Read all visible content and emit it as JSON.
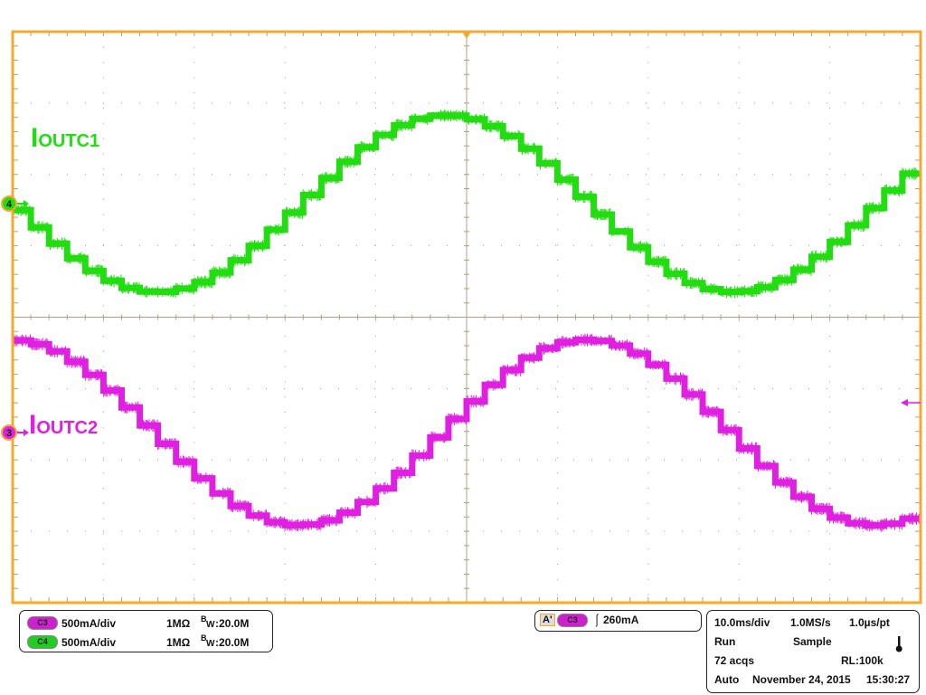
{
  "chart_data": {
    "type": "line",
    "xlabel": "",
    "ylabel": "",
    "x_unit": "ms",
    "xlim": [
      -50,
      50
    ],
    "x_divisions": 10,
    "y_divisions": 8,
    "grid": true,
    "x": [
      -50,
      -48,
      -46,
      -44,
      -42,
      -40,
      -38,
      -36,
      -34,
      -32,
      -30,
      -28,
      -26,
      -24,
      -22,
      -20,
      -18,
      -16,
      -14,
      -12,
      -10,
      -8,
      -6,
      -4,
      -2,
      0,
      2,
      4,
      6,
      8,
      10,
      12,
      14,
      16,
      18,
      20,
      22,
      24,
      26,
      28,
      30,
      32,
      34,
      36,
      38,
      40,
      42,
      44,
      46,
      48
    ],
    "series": [
      {
        "name": "IOUTC1",
        "label_main": "I",
        "label_sub": "OUTC1",
        "channel": "4",
        "color": "#22dd11",
        "y_unit": "mA",
        "scale_mA_per_div": 500,
        "values": [
          -45,
          -166,
          -280,
          -383,
          -471,
          -541,
          -590,
          -616,
          -618,
          -595,
          -550,
          -483,
          -397,
          -296,
          -183,
          -63,
          60,
          179,
          293,
          394,
          481,
          549,
          594,
          617,
          616,
          591,
          542,
          473,
          385,
          282,
          168,
          48,
          -76,
          -195,
          -306,
          -407,
          -491,
          -556,
          -599,
          -619,
          -614,
          -586,
          -535,
          -463,
          -372,
          -268,
          -152,
          -31,
          92,
          210
        ]
      },
      {
        "name": "IOUTC2",
        "label_main": "I",
        "label_sub": "OUTC2",
        "channel": "3",
        "color": "#e020e0",
        "y_unit": "mA",
        "scale_mA_per_div": 500,
        "values": [
          646,
          619,
          569,
          496,
          404,
          295,
          176,
          50,
          -79,
          -204,
          -321,
          -426,
          -514,
          -582,
          -628,
          -649,
          -644,
          -615,
          -561,
          -486,
          -391,
          -282,
          -161,
          -34,
          95,
          219,
          335,
          438,
          524,
          590,
          632,
          649,
          642,
          609,
          553,
          475,
          378,
          267,
          145,
          18,
          -111,
          -234,
          -349,
          -450,
          -534,
          -596,
          -635,
          -650,
          -639,
          -603
        ]
      }
    ]
  },
  "channels": [
    {
      "pill": "C3",
      "scale": "500mA/div",
      "impedance": "1MΩ",
      "bw_b": "B",
      "bw_w": "W",
      "bw_value": ":20.0M",
      "color": "#cc22cc"
    },
    {
      "pill": "C4",
      "scale": "500mA/div",
      "impedance": "1MΩ",
      "bw_b": "B",
      "bw_w": "W",
      "bw_value": ":20.0M",
      "color": "#22cc22"
    }
  ],
  "trigger": {
    "mode": "A'",
    "source": "C3",
    "slope_icon": "rising-edge-icon",
    "slope_glyph": "⎰",
    "level": "260mA"
  },
  "acquisition": {
    "timebase": "10.0ms/div",
    "sample_rate": "1.0MS/s",
    "resolution": "1.0µs/pt",
    "state": "Run",
    "mode": "Sample",
    "temp_icon": "thermometer-icon",
    "acqs": "72 acqs",
    "record_length": "RL:100k",
    "trigger_mode": "Auto",
    "date": "November 24, 2015",
    "time": "15:30:27"
  },
  "colors": {
    "frame": "#f7a830",
    "grid": "#999999",
    "axis": "#b0a080"
  }
}
